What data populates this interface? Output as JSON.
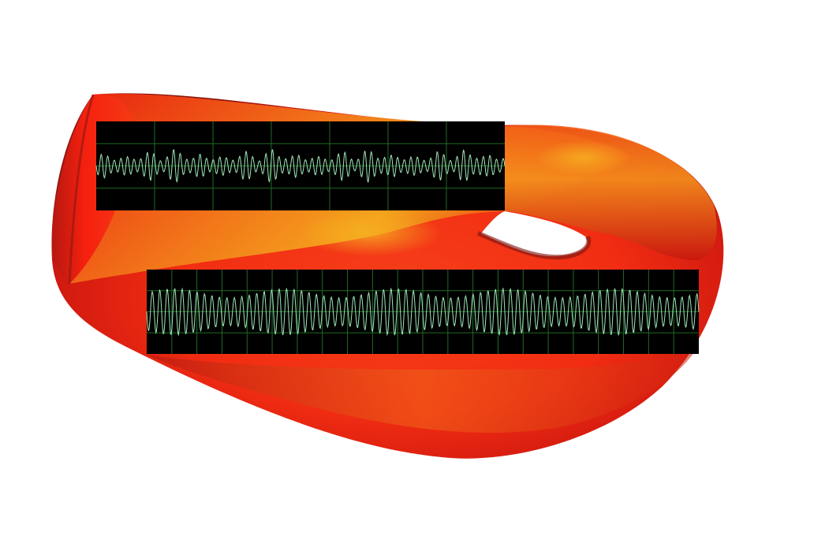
{
  "colors": {
    "background": "#ffffff",
    "surface_light": "#f4a21c",
    "surface_mid": "#f52a10",
    "surface_dark": "#7a1410",
    "scope_bg": "#000000",
    "grid": "#1f6b24",
    "trace": "#9fe8b8"
  },
  "scopes": [
    {
      "id": "upper",
      "grid_cols": 7,
      "grid_rows": 4,
      "carrier_cycles": 62,
      "modulation": "irregular",
      "amplitude": 0.85
    },
    {
      "id": "lower",
      "grid_cols": 22,
      "grid_rows": 4,
      "carrier_cycles": 74,
      "modulation": "gentle",
      "amplitude": 0.9
    }
  ]
}
